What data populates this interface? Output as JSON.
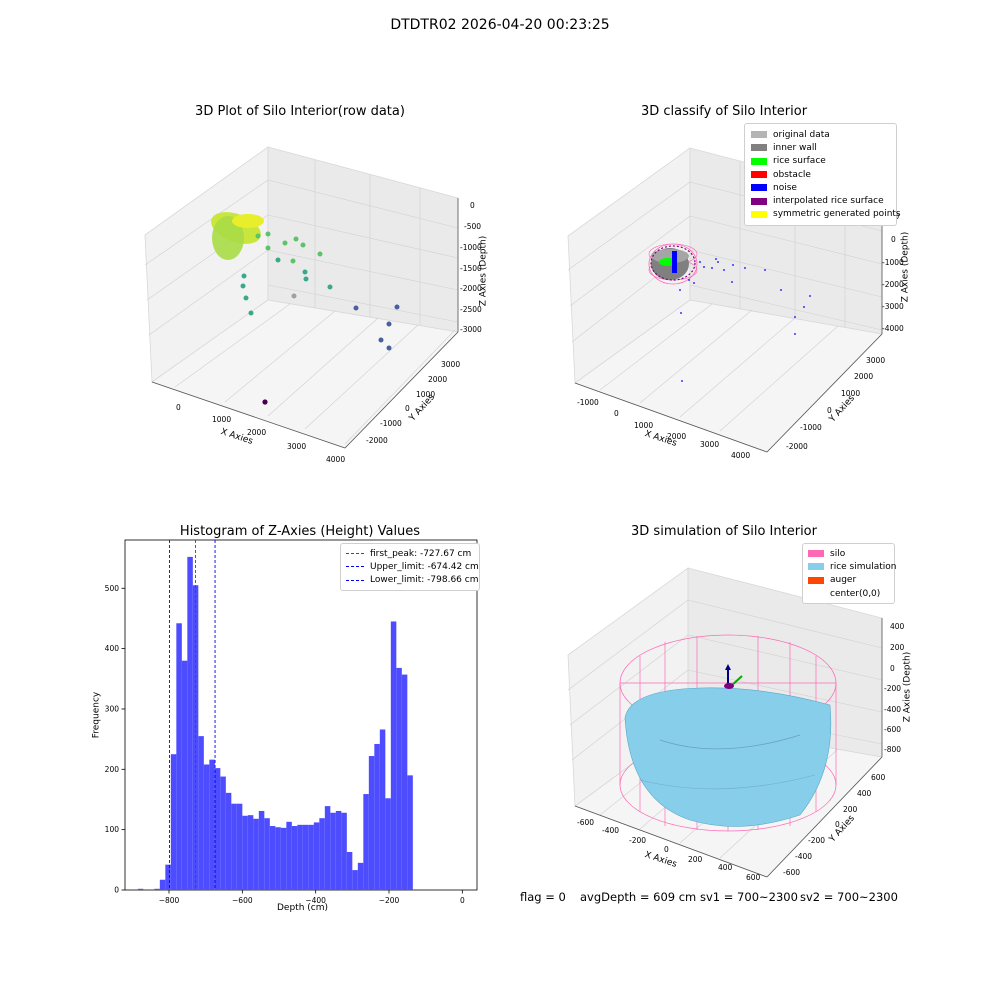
{
  "figure": {
    "suptitle": "DTDTR02 2026-04-20 00:23:25"
  },
  "panels": {
    "raw": {
      "title": "3D Plot of Silo Interior(row data)",
      "xlabel": "X Axies",
      "ylabel": "Y Axies",
      "zlabel": "Z Axies (Depth)",
      "xticks": [
        "0",
        "1000",
        "2000",
        "3000",
        "4000"
      ],
      "yticks": [
        "3000",
        "2000",
        "1000",
        "0",
        "-1000",
        "-2000"
      ],
      "zticks": [
        "0",
        "-500",
        "-1000",
        "-1500",
        "-2000",
        "-2500",
        "-3000"
      ]
    },
    "classify": {
      "title": "3D classify of Silo Interior",
      "xlabel": "X Axies",
      "ylabel": "Y Axies",
      "zlabel": "Z Axies (Depth)",
      "xticks": [
        "-1000",
        "0",
        "1000",
        "2000",
        "3000",
        "4000"
      ],
      "yticks": [
        "3000",
        "2000",
        "1000",
        "0",
        "-1000",
        "-2000"
      ],
      "zticks": [
        "1000",
        "0",
        "-1000",
        "-2000",
        "-3000",
        "-4000"
      ],
      "legend": [
        {
          "label": "original data",
          "color": "#b4b4b4"
        },
        {
          "label": "inner wall",
          "color": "#808080"
        },
        {
          "label": "rice surface",
          "color": "#00ff00"
        },
        {
          "label": "obstacle",
          "color": "#ff0000"
        },
        {
          "label": "noise",
          "color": "#0000ff"
        },
        {
          "label": "interpolated rice surface",
          "color": "#800080"
        },
        {
          "label": "symmetric generated points",
          "color": "#ffff00"
        }
      ]
    },
    "histogram": {
      "title": "Histogram of Z-Axies (Height) Values",
      "xlabel": "Depth (cm)",
      "ylabel": "Frequency",
      "legend": [
        {
          "label": "first_peak: -727.67 cm",
          "color": "#ff0000"
        },
        {
          "label": "Upper_limit: -674.42 cm",
          "color": "#0000ff"
        },
        {
          "label": "Lower_limit: -798.66 cm",
          "color": "#0000ff"
        }
      ]
    },
    "simulation": {
      "title": "3D simulation of Silo Interior",
      "xlabel": "X Axies",
      "ylabel": "Y Axies",
      "zlabel": "Z Axies (Depth)",
      "xticks": [
        "-600",
        "-400",
        "-200",
        "0",
        "200",
        "400",
        "600"
      ],
      "yticks": [
        "600",
        "400",
        "200",
        "0",
        "-200",
        "-400",
        "-600"
      ],
      "zticks": [
        "400",
        "200",
        "0",
        "-200",
        "-400",
        "-600",
        "-800"
      ],
      "legend": [
        {
          "label": "silo",
          "color": "#ff69b4"
        },
        {
          "label": "rice simulation",
          "color": "#87ceeb"
        },
        {
          "label": "auger",
          "color": "#ff4500"
        },
        {
          "label": "center(0,0)",
          "color": ""
        }
      ]
    }
  },
  "status": {
    "flag": "flag = 0",
    "avg_depth": "avgDepth = 609 cm",
    "sv1": "sv1 = 700~2300",
    "sv2": "sv2 = 700~2300"
  },
  "chart_data": [
    {
      "type": "scatter",
      "title": "3D Plot of Silo Interior(row data)",
      "xlabel": "X Axies",
      "ylabel": "Y Axies",
      "zlabel": "Z Axies (Depth)",
      "xlim": [
        -700,
        4100
      ],
      "ylim": [
        -2300,
        3500
      ],
      "zlim": [
        -3200,
        100
      ],
      "grid": true
    },
    {
      "type": "scatter",
      "title": "3D classify of Silo Interior",
      "xlabel": "X Axies",
      "ylabel": "Y Axies",
      "zlabel": "Z Axies (Depth)",
      "xlim": [
        -1300,
        4300
      ],
      "ylim": [
        -2300,
        3300
      ],
      "zlim": [
        -4300,
        1200
      ],
      "legend_position": "top-right",
      "grid": true
    },
    {
      "type": "bar",
      "title": "Histogram of Z-Axies (Height) Values",
      "xlabel": "Depth (cm)",
      "ylabel": "Frequency",
      "xlim": [
        -920,
        40
      ],
      "ylim": [
        0,
        580
      ],
      "xticks": [
        -800,
        -600,
        -400,
        -200,
        0
      ],
      "yticks": [
        0,
        100,
        200,
        300,
        400,
        500
      ],
      "bin_width": 15,
      "bin_start": -885,
      "values": [
        2,
        0,
        0,
        2,
        17,
        42,
        225,
        442,
        380,
        552,
        505,
        255,
        208,
        216,
        202,
        188,
        161,
        143,
        143,
        123,
        124,
        118,
        131,
        119,
        106,
        104,
        103,
        113,
        106,
        108,
        108,
        108,
        112,
        119,
        139,
        128,
        131,
        128,
        63,
        33,
        45,
        159,
        222,
        242,
        266,
        152,
        445,
        368,
        357,
        190
      ],
      "vlines": [
        {
          "name": "first_peak",
          "x": -727.67,
          "color": "#ff0000",
          "style": "dashed"
        },
        {
          "name": "Upper_limit",
          "x": -674.42,
          "color": "#0000ff",
          "style": "dashed"
        },
        {
          "name": "Lower_limit",
          "x": -798.66,
          "color": "#0000ff",
          "style": "dashed"
        }
      ],
      "bar_color": "#4d4dff",
      "legend_position": "top-right",
      "grid": false
    },
    {
      "type": "area",
      "title": "3D simulation of Silo Interior",
      "xlabel": "X Axies",
      "ylabel": "Y Axies",
      "zlabel": "Z Axies (Depth)",
      "xlim": [
        -700,
        700
      ],
      "ylim": [
        -700,
        700
      ],
      "zlim": [
        -900,
        450
      ],
      "legend_position": "top-right",
      "grid": true
    }
  ]
}
